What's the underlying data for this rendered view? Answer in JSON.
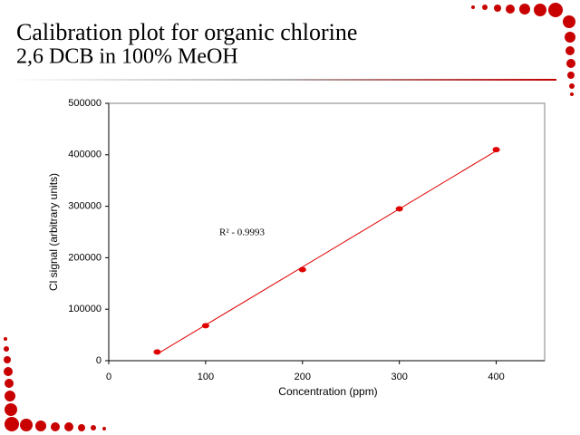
{
  "chart_data": {
    "type": "scatter",
    "title": "Calibration plot for organic chlorine",
    "subtitle": "2,6 DCB in 100% MeOH",
    "x_label": "Concentration (ppm)",
    "y_label": "Cl signal (arbitrary units)",
    "annotation": "R² - 0.9993",
    "x": [
      50,
      100,
      200,
      300,
      400
    ],
    "values": [
      17000,
      68000,
      177000,
      295000,
      410000
    ],
    "color": "#e00000",
    "trendline": true,
    "xlim": [
      0,
      450
    ],
    "xticks": [
      0,
      100,
      200,
      300,
      400
    ],
    "ylim": [
      0,
      500000
    ],
    "yticks": [
      0,
      100000,
      200000,
      300000,
      400000,
      500000
    ]
  }
}
